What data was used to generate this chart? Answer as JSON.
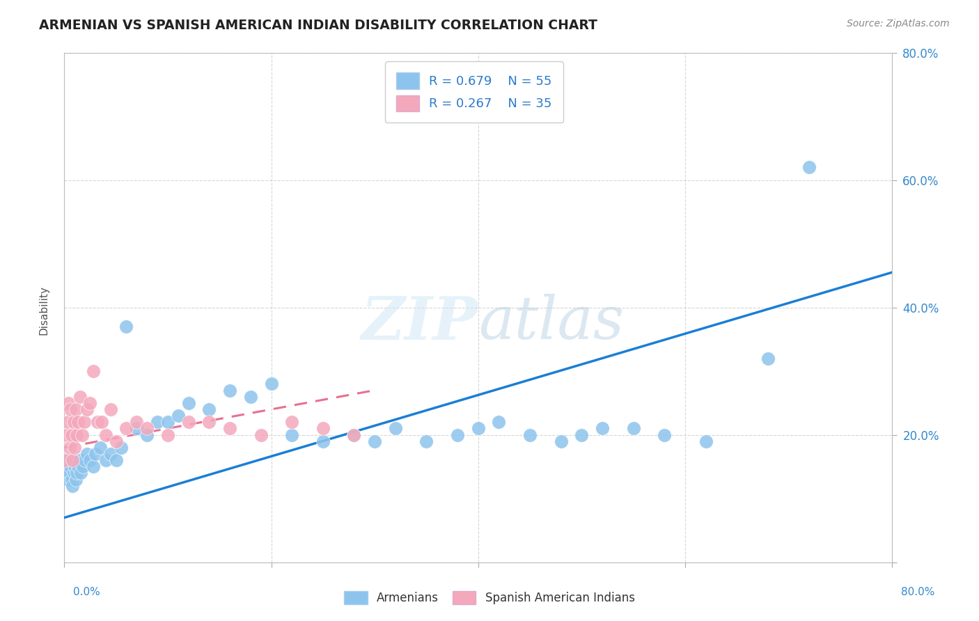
{
  "title": "ARMENIAN VS SPANISH AMERICAN INDIAN DISABILITY CORRELATION CHART",
  "source": "Source: ZipAtlas.com",
  "ylabel": "Disability",
  "watermark": "ZIPatlas",
  "legend_r1": "R = 0.679",
  "legend_n1": "N = 55",
  "legend_r2": "R = 0.267",
  "legend_n2": "N = 35",
  "xlim": [
    0.0,
    0.8
  ],
  "ylim": [
    0.0,
    0.8
  ],
  "blue_color": "#8dc4ed",
  "pink_color": "#f4a8bc",
  "blue_line_color": "#1a7fd4",
  "pink_line_color": "#e87090",
  "armenians_x": [
    0.001,
    0.002,
    0.003,
    0.004,
    0.005,
    0.006,
    0.007,
    0.008,
    0.009,
    0.01,
    0.011,
    0.012,
    0.013,
    0.015,
    0.016,
    0.018,
    0.02,
    0.022,
    0.025,
    0.028,
    0.03,
    0.035,
    0.04,
    0.045,
    0.05,
    0.055,
    0.06,
    0.07,
    0.08,
    0.09,
    0.1,
    0.11,
    0.12,
    0.14,
    0.16,
    0.18,
    0.2,
    0.22,
    0.25,
    0.28,
    0.3,
    0.32,
    0.35,
    0.38,
    0.4,
    0.42,
    0.45,
    0.48,
    0.5,
    0.52,
    0.55,
    0.58,
    0.62,
    0.68,
    0.72
  ],
  "armenians_y": [
    0.14,
    0.15,
    0.13,
    0.16,
    0.14,
    0.15,
    0.13,
    0.12,
    0.14,
    0.15,
    0.13,
    0.14,
    0.15,
    0.16,
    0.14,
    0.15,
    0.16,
    0.17,
    0.16,
    0.15,
    0.17,
    0.18,
    0.16,
    0.17,
    0.16,
    0.18,
    0.37,
    0.21,
    0.2,
    0.22,
    0.22,
    0.23,
    0.25,
    0.24,
    0.27,
    0.26,
    0.28,
    0.2,
    0.19,
    0.2,
    0.19,
    0.21,
    0.19,
    0.2,
    0.21,
    0.22,
    0.2,
    0.19,
    0.2,
    0.21,
    0.21,
    0.2,
    0.19,
    0.32,
    0.62
  ],
  "spanish_x": [
    0.001,
    0.002,
    0.003,
    0.004,
    0.005,
    0.006,
    0.007,
    0.008,
    0.009,
    0.01,
    0.011,
    0.012,
    0.013,
    0.015,
    0.017,
    0.019,
    0.022,
    0.025,
    0.028,
    0.032,
    0.036,
    0.04,
    0.045,
    0.05,
    0.06,
    0.07,
    0.08,
    0.1,
    0.12,
    0.14,
    0.16,
    0.19,
    0.22,
    0.25,
    0.28
  ],
  "spanish_y": [
    0.16,
    0.2,
    0.22,
    0.25,
    0.18,
    0.24,
    0.2,
    0.16,
    0.22,
    0.18,
    0.24,
    0.2,
    0.22,
    0.26,
    0.2,
    0.22,
    0.24,
    0.25,
    0.3,
    0.22,
    0.22,
    0.2,
    0.24,
    0.19,
    0.21,
    0.22,
    0.21,
    0.2,
    0.22,
    0.22,
    0.21,
    0.2,
    0.22,
    0.21,
    0.2
  ],
  "blue_line_x0": 0.0,
  "blue_line_y0": 0.07,
  "blue_line_x1": 0.8,
  "blue_line_y1": 0.455,
  "pink_line_x0": 0.0,
  "pink_line_y0": 0.18,
  "pink_line_x1": 0.3,
  "pink_line_y1": 0.27
}
